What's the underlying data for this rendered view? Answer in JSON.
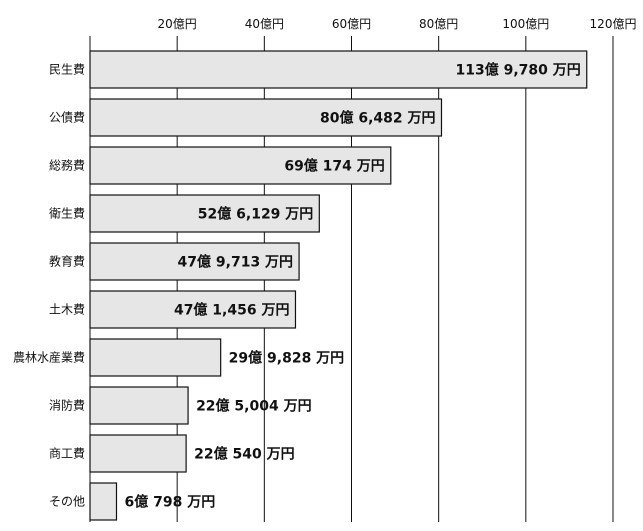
{
  "chart_data": {
    "type": "bar",
    "orientation": "horizontal",
    "categories": [
      "民生費",
      "公債費",
      "総務費",
      "衛生費",
      "教育費",
      "土木費",
      "農林水産業費",
      "消防費",
      "商工費",
      "その他"
    ],
    "values": [
      113.978,
      80.6482,
      69.0174,
      52.6129,
      47.9713,
      47.1456,
      29.9828,
      22.5004,
      22.054,
      6.0798
    ],
    "value_labels": [
      "113億 9,780 万円",
      "80億 6,482 万円",
      "69億 174 万円",
      "52億 6,129 万円",
      "47億 9,713 万円",
      "47億 1,456 万円",
      "29億 9,828 万円",
      "22億 5,004 万円",
      "22億 540 万円",
      "6億 798 万円"
    ],
    "x_ticks": [
      20,
      40,
      60,
      80,
      100,
      120
    ],
    "x_tick_labels": [
      "20億円",
      "40億円",
      "60億円",
      "80億円",
      "100億円",
      "120億円"
    ],
    "xlim": [
      0,
      120
    ],
    "grid": true,
    "bar_color": "#e6e6e6",
    "bar_edge_color": "#111111"
  }
}
